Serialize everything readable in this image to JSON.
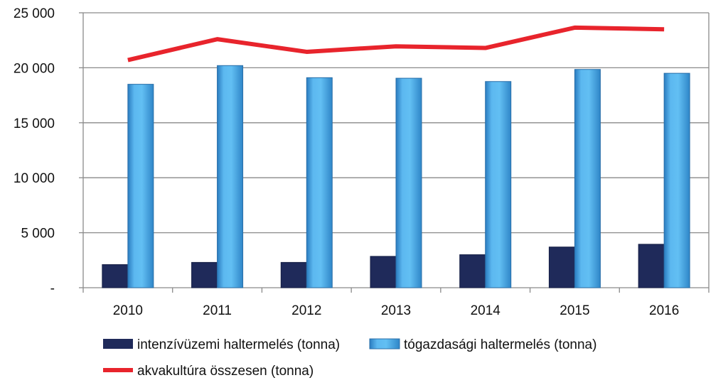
{
  "chart_data": {
    "type": "bar",
    "categories": [
      "2010",
      "2011",
      "2012",
      "2013",
      "2014",
      "2015",
      "2016"
    ],
    "series": [
      {
        "name": "intenzívüzemi haltermelés (tonna)",
        "type": "bar",
        "color": "#1f2a5a",
        "values": [
          2100,
          2300,
          2300,
          2850,
          3000,
          3700,
          3950
        ]
      },
      {
        "name": "tógazdasági haltermelés (tonna)",
        "type": "bar",
        "color": "#4fa9e8",
        "values": [
          18500,
          20200,
          19100,
          19050,
          18750,
          19850,
          19500
        ]
      },
      {
        "name": "akvakultúra összesen (tonna)",
        "type": "line",
        "color": "#e8242c",
        "values": [
          20700,
          22600,
          21450,
          21950,
          21800,
          23650,
          23500
        ]
      }
    ],
    "ylim": [
      0,
      25000
    ],
    "yticks": [
      0,
      5000,
      10000,
      15000,
      20000,
      25000
    ],
    "ytick_labels": [
      "-",
      "5 000",
      "10 000",
      "15 000",
      "20 000",
      "25 000"
    ],
    "grid": true,
    "legend": "bottom"
  }
}
